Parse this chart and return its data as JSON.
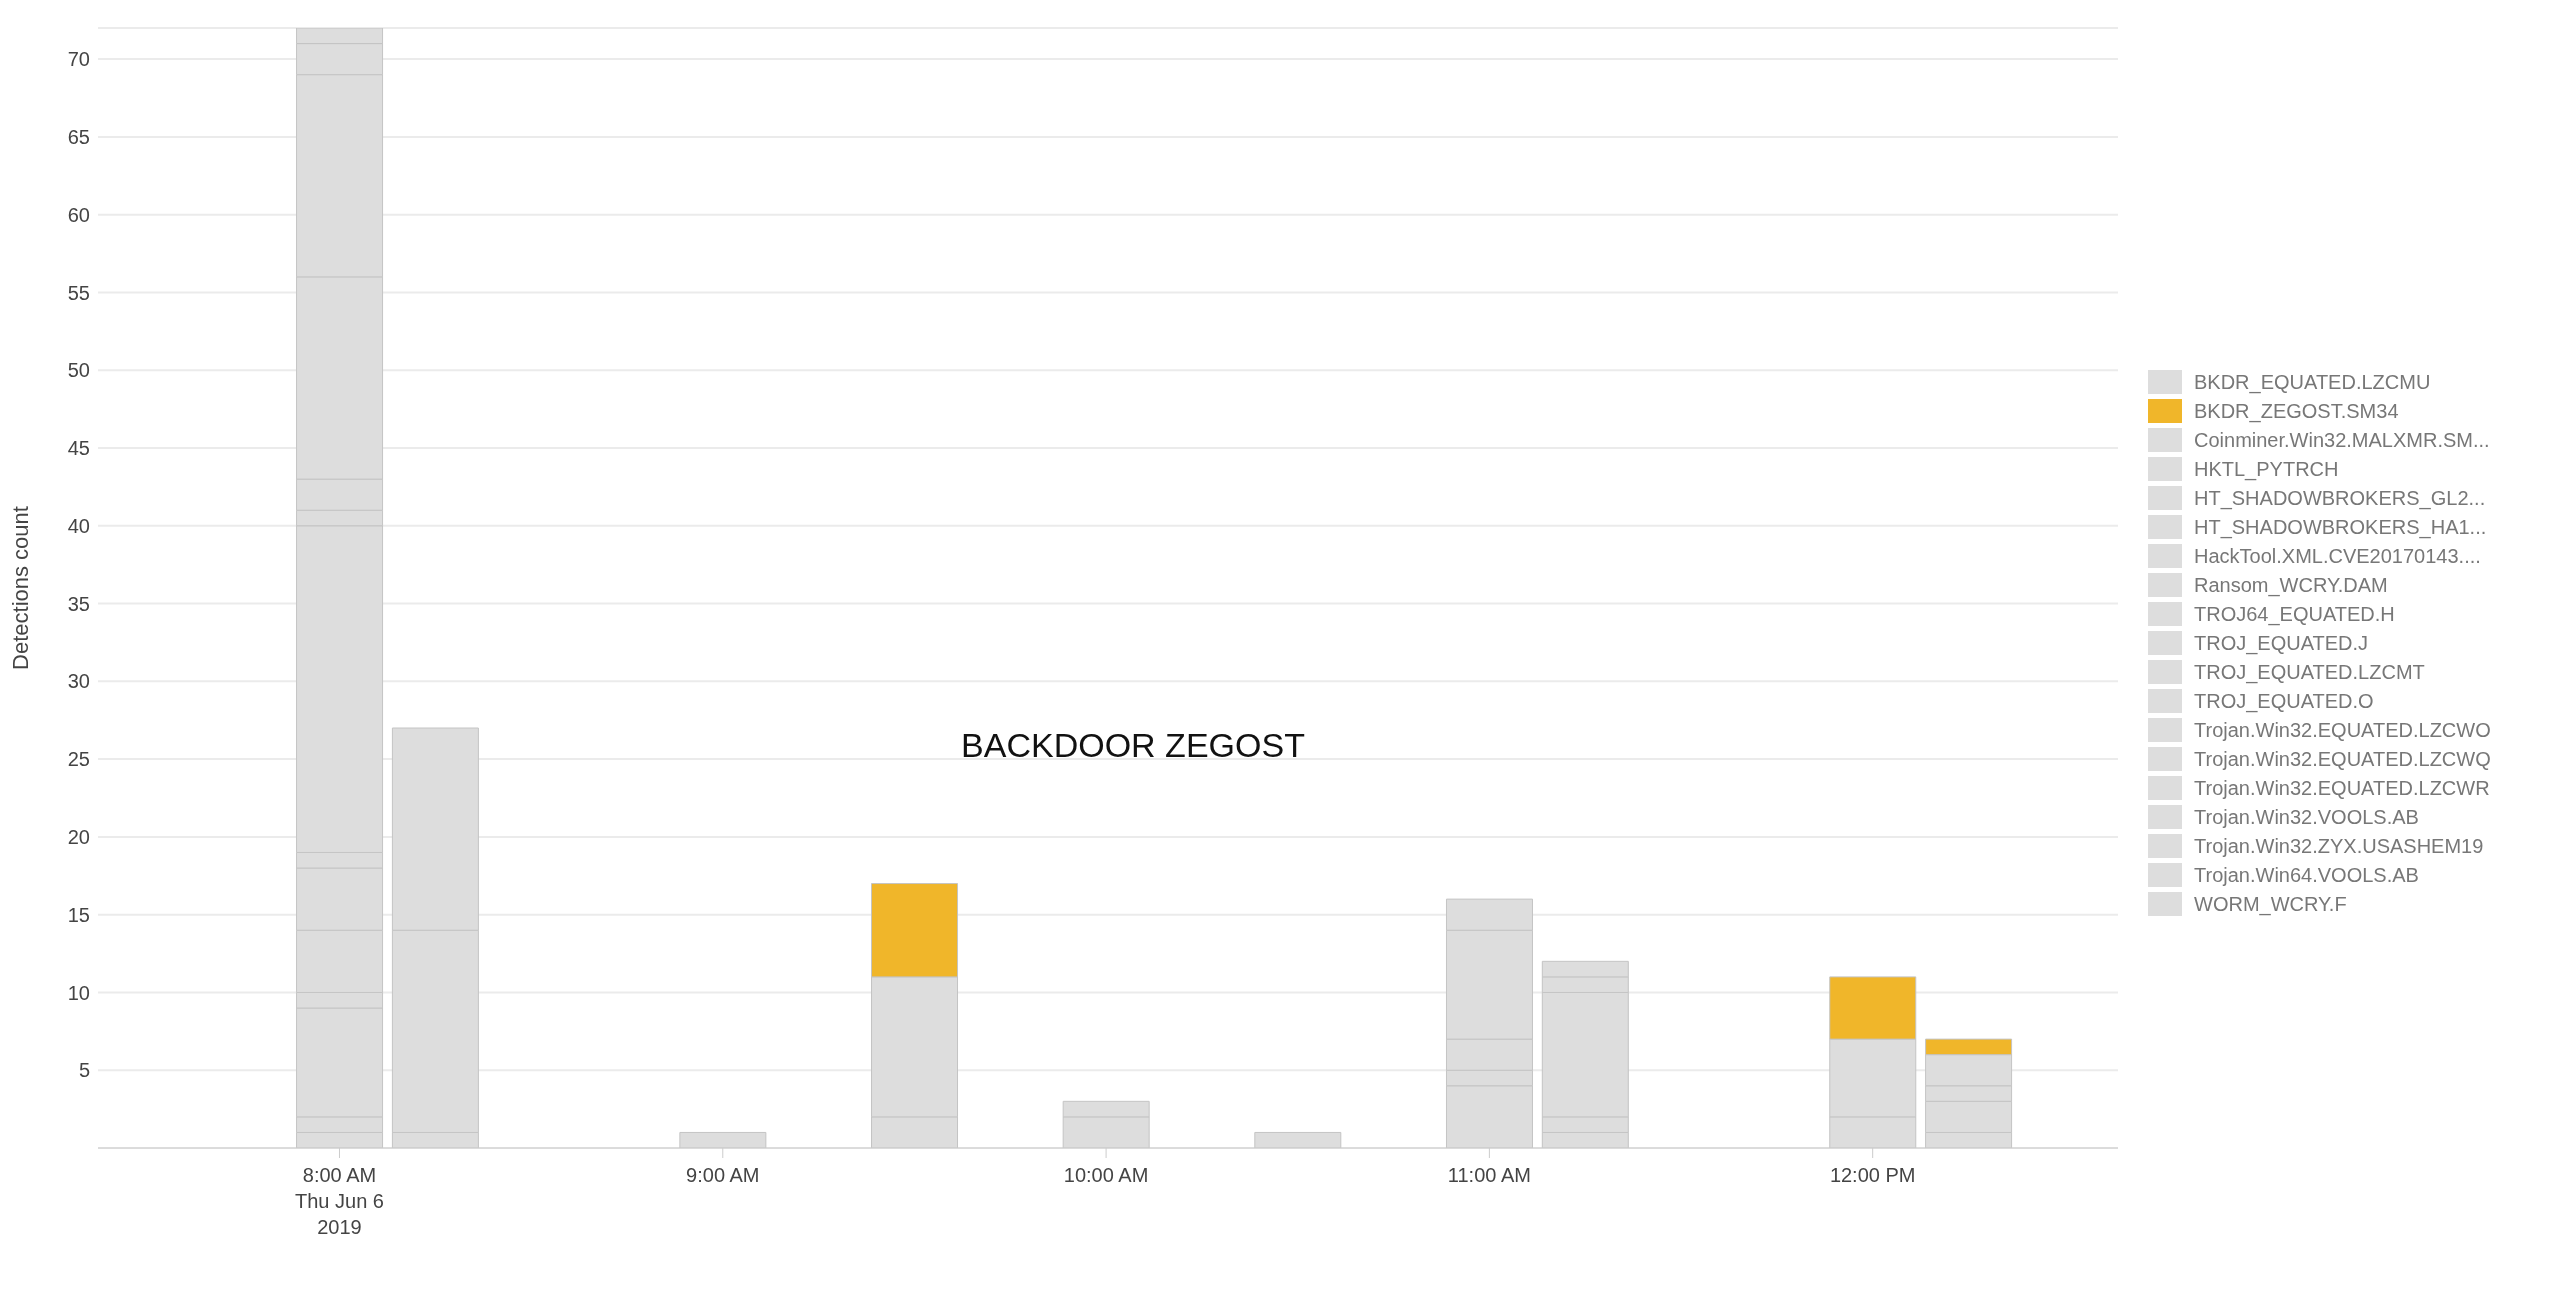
{
  "chart_data": {
    "type": "bar",
    "stacked": true,
    "title": "BACKDOOR ZEGOST",
    "ylabel": "Detections count",
    "x": [
      8,
      8.25,
      9,
      9.5,
      10,
      10.5,
      11,
      11.25,
      12,
      12.25
    ],
    "xlim": [
      7.37,
      12.64
    ],
    "xticks": [
      {
        "value": 8,
        "label": "8:00 AM\nThu Jun 6\n2019"
      },
      {
        "value": 9,
        "label": "9:00 AM"
      },
      {
        "value": 10,
        "label": "10:00 AM"
      },
      {
        "value": 11,
        "label": "11:00 AM"
      },
      {
        "value": 12,
        "label": "12:00 PM"
      }
    ],
    "ylim": [
      0,
      72
    ],
    "yticks": [
      5,
      10,
      15,
      20,
      25,
      30,
      35,
      40,
      45,
      50,
      55,
      60,
      65,
      70
    ],
    "grid": "y",
    "legend": "right",
    "series": [
      {
        "name": "WORM_WCRY.F",
        "color": "#dddddd",
        "values": [
          1,
          1,
          1,
          2,
          2,
          1,
          4,
          1,
          2,
          1
        ]
      },
      {
        "name": "Trojan.Win64.VOOLS.AB",
        "color": "#dddddd",
        "values": [
          1,
          13,
          null,
          9,
          1,
          null,
          1,
          1,
          5,
          2
        ]
      },
      {
        "name": "Trojan.Win32.ZYX.USASHEM19",
        "color": "#dddddd",
        "values": [
          7,
          13,
          null,
          null,
          null,
          null,
          2,
          8,
          null,
          1
        ]
      },
      {
        "name": "Trojan.Win32.VOOLS.AB",
        "color": "#dddddd",
        "values": [
          1,
          null,
          null,
          null,
          null,
          null,
          7,
          1,
          null,
          2
        ]
      },
      {
        "name": "Trojan.Win32.EQUATED.LZCWR",
        "color": "#dddddd",
        "values": [
          4,
          null,
          null,
          null,
          null,
          null,
          2,
          1,
          null,
          null
        ]
      },
      {
        "name": "Trojan.Win32.EQUATED.LZCWQ",
        "color": "#dddddd",
        "values": [
          4,
          null,
          null,
          null,
          null,
          null,
          null,
          null,
          null,
          null
        ]
      },
      {
        "name": "Trojan.Win32.EQUATED.LZCWO",
        "color": "#dddddd",
        "values": [
          1,
          null,
          null,
          null,
          null,
          null,
          null,
          null,
          null,
          null
        ]
      },
      {
        "name": "TROJ_EQUATED.O",
        "color": "#dddddd",
        "values": [
          21,
          null,
          null,
          null,
          null,
          null,
          null,
          null,
          null,
          null
        ]
      },
      {
        "name": "TROJ_EQUATED.LZCMT",
        "color": "#dddddd",
        "values": [
          1,
          null,
          null,
          null,
          null,
          null,
          null,
          null,
          null,
          null
        ]
      },
      {
        "name": "TROJ_EQUATED.J",
        "color": "#dddddd",
        "values": [
          2,
          null,
          null,
          null,
          null,
          null,
          null,
          null,
          null,
          null
        ]
      },
      {
        "name": "TROJ64_EQUATED.H",
        "color": "#dddddd",
        "values": [
          13,
          null,
          null,
          null,
          null,
          null,
          null,
          null,
          null,
          null
        ]
      },
      {
        "name": "Ransom_WCRY.DAM",
        "color": "#dddddd",
        "values": [
          13,
          null,
          null,
          null,
          null,
          null,
          null,
          null,
          null,
          null
        ]
      },
      {
        "name": "HackTool.XML.CVE20170143....",
        "color": "#dddddd",
        "values": [
          2,
          null,
          null,
          null,
          null,
          null,
          null,
          null,
          null,
          null
        ]
      },
      {
        "name": "HT_SHADOWBROKERS_HA1...",
        "color": "#dddddd",
        "values": [
          1,
          null,
          null,
          null,
          null,
          null,
          null,
          null,
          null,
          null
        ]
      },
      {
        "name": "HT_SHADOWBROKERS_GL2...",
        "color": "#dddddd",
        "values": [
          null,
          null,
          null,
          null,
          null,
          null,
          null,
          null,
          null,
          null
        ]
      },
      {
        "name": "HKTL_PYTRCH",
        "color": "#dddddd",
        "values": [
          null,
          null,
          null,
          null,
          null,
          null,
          null,
          null,
          null,
          null
        ]
      },
      {
        "name": "Coinminer.Win32.MALXMR.SM...",
        "color": "#dddddd",
        "values": [
          null,
          null,
          null,
          null,
          null,
          null,
          null,
          null,
          null,
          null
        ]
      },
      {
        "name": "BKDR_ZEGOST.SM34",
        "color": "#f0b62a",
        "values": [
          null,
          null,
          null,
          6,
          null,
          null,
          null,
          null,
          4,
          1
        ]
      },
      {
        "name": "BKDR_EQUATED.LZCMU",
        "color": "#dddddd",
        "values": [
          null,
          null,
          null,
          null,
          null,
          null,
          null,
          null,
          null,
          null
        ]
      }
    ]
  }
}
